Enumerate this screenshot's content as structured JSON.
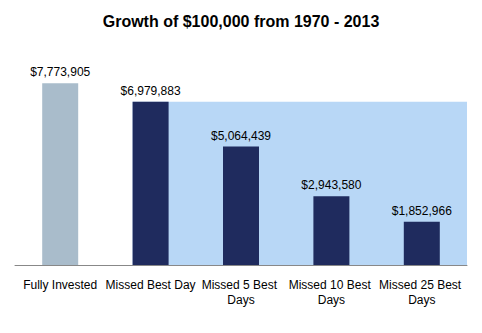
{
  "chart_data": {
    "type": "bar",
    "title": "Growth of $100,000 from 1970 - 2013",
    "categories": [
      "Fully Invested",
      "Missed Best Day",
      "Missed 5 Best Days",
      "Missed 10 Best Days",
      "Missed 25 Best Days"
    ],
    "values": [
      7773905,
      6979883,
      5064439,
      2943580,
      1852966
    ],
    "value_labels": [
      "$7,773,905",
      "$6,979,883",
      "$5,064,439",
      "$2,943,580",
      "$1,852,966"
    ],
    "colors": [
      "#a9bccb",
      "#1f2b5e",
      "#1f2b5e",
      "#1f2b5e",
      "#1f2b5e"
    ],
    "ylim": [
      0,
      8000000
    ],
    "data_labels": true,
    "grid": false,
    "tick_labels": "x"
  }
}
